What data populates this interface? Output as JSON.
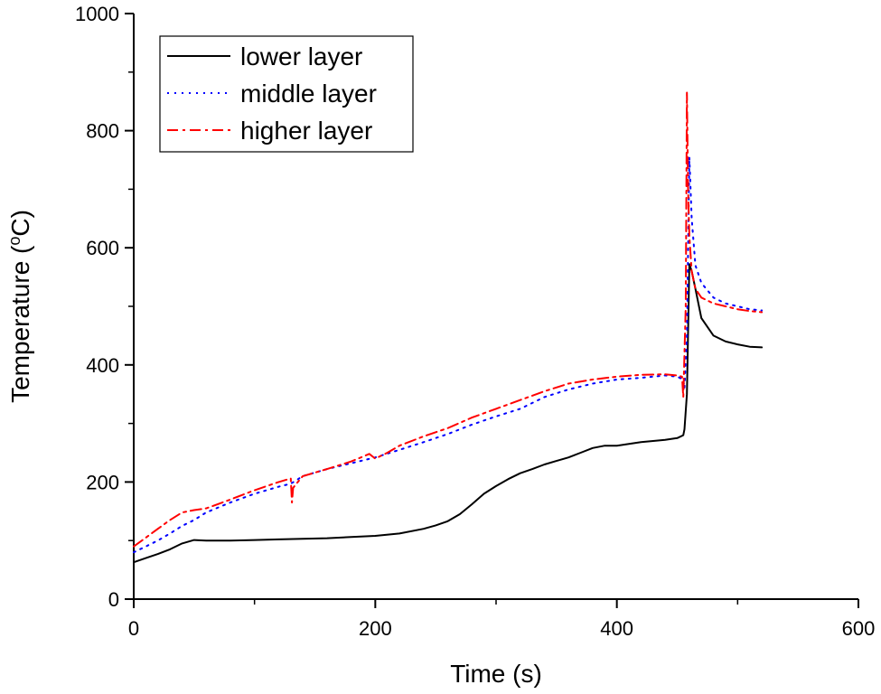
{
  "chart_data": {
    "type": "line",
    "title": "",
    "xlabel": "Time (s)",
    "ylabel_main": "Temperature (",
    "ylabel_super": "o",
    "ylabel_tail": "C)",
    "xlim": [
      0,
      600
    ],
    "ylim": [
      0,
      1000
    ],
    "xticks": [
      0,
      200,
      400,
      600
    ],
    "yticks": [
      0,
      200,
      400,
      600,
      800,
      1000
    ],
    "grid": false,
    "legend_position": "top-left",
    "series": [
      {
        "name": "lower layer",
        "color": "#000000",
        "style": "solid",
        "x": [
          0,
          10,
          20,
          30,
          40,
          50,
          60,
          80,
          100,
          120,
          140,
          160,
          180,
          200,
          220,
          240,
          250,
          260,
          270,
          280,
          290,
          300,
          310,
          320,
          330,
          340,
          350,
          360,
          370,
          380,
          390,
          400,
          410,
          420,
          430,
          440,
          450,
          455,
          456,
          458,
          460,
          462,
          465,
          470,
          480,
          490,
          500,
          510,
          520
        ],
        "y": [
          63,
          70,
          77,
          85,
          95,
          101,
          100,
          100,
          101,
          102,
          103,
          104,
          106,
          108,
          112,
          120,
          126,
          133,
          145,
          162,
          180,
          193,
          205,
          215,
          222,
          230,
          236,
          242,
          250,
          258,
          262,
          262,
          265,
          268,
          270,
          272,
          275,
          280,
          290,
          350,
          572,
          560,
          530,
          480,
          450,
          440,
          435,
          431,
          430
        ]
      },
      {
        "name": "middle layer",
        "color": "#0000ff",
        "style": "dotted",
        "x": [
          0,
          10,
          20,
          30,
          40,
          50,
          60,
          80,
          100,
          120,
          130,
          140,
          160,
          180,
          200,
          220,
          240,
          260,
          280,
          300,
          320,
          330,
          340,
          360,
          380,
          400,
          420,
          440,
          450,
          455,
          456,
          458,
          460,
          462,
          465,
          470,
          480,
          490,
          500,
          510,
          520
        ],
        "y": [
          80,
          90,
          100,
          112,
          125,
          135,
          148,
          165,
          180,
          192,
          197,
          210,
          222,
          232,
          242,
          255,
          268,
          282,
          298,
          312,
          325,
          335,
          345,
          358,
          368,
          375,
          378,
          382,
          380,
          375,
          360,
          450,
          755,
          650,
          570,
          540,
          515,
          505,
          500,
          495,
          493
        ]
      },
      {
        "name": "higher layer",
        "color": "#ff0000",
        "style": "dashdot",
        "x": [
          0,
          10,
          20,
          30,
          40,
          50,
          60,
          80,
          100,
          120,
          130,
          131,
          132,
          135,
          140,
          160,
          180,
          195,
          200,
          210,
          220,
          240,
          260,
          280,
          300,
          320,
          340,
          360,
          380,
          400,
          420,
          440,
          450,
          454,
          455,
          457,
          458,
          459,
          460,
          462,
          465,
          470,
          480,
          490,
          500,
          510,
          520
        ],
        "y": [
          90,
          105,
          120,
          135,
          148,
          152,
          155,
          170,
          186,
          200,
          206,
          165,
          190,
          198,
          210,
          222,
          235,
          248,
          240,
          250,
          262,
          278,
          292,
          310,
          325,
          340,
          355,
          368,
          375,
          380,
          383,
          384,
          382,
          380,
          345,
          500,
          865,
          700,
          620,
          560,
          530,
          515,
          505,
          500,
          495,
          492,
          490
        ]
      }
    ]
  }
}
